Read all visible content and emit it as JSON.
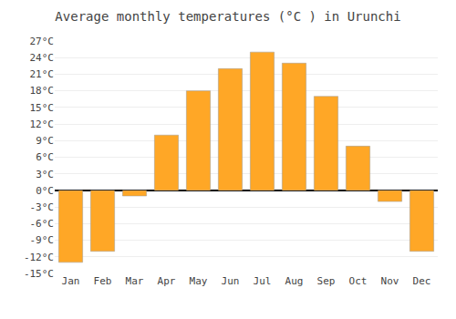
{
  "chart_data": {
    "type": "bar",
    "title": "Average monthly temperatures (°C ) in Urunchi",
    "categories": [
      "Jan",
      "Feb",
      "Mar",
      "Apr",
      "May",
      "Jun",
      "Jul",
      "Aug",
      "Sep",
      "Oct",
      "Nov",
      "Dec"
    ],
    "values": [
      -13,
      -11,
      -1,
      10,
      18,
      22,
      25,
      23,
      17,
      8,
      -2,
      -11
    ],
    "color": "#FFA726",
    "ylim": [
      -15,
      27
    ],
    "yticks": [
      {
        "value": -15,
        "label": "-15°C"
      },
      {
        "value": -12,
        "label": "-12°C"
      },
      {
        "value": -9,
        "label": "-9°C"
      },
      {
        "value": -6,
        "label": "-6°C"
      },
      {
        "value": -3,
        "label": "-3°C"
      },
      {
        "value": 0,
        "label": "0°C"
      },
      {
        "value": 3,
        "label": "3°C"
      },
      {
        "value": 6,
        "label": "6°C"
      },
      {
        "value": 9,
        "label": "9°C"
      },
      {
        "value": 12,
        "label": "12°C"
      },
      {
        "value": 15,
        "label": "15°C"
      },
      {
        "value": 18,
        "label": "18°C"
      },
      {
        "value": 21,
        "label": "21°C"
      },
      {
        "value": 24,
        "label": "24°C"
      },
      {
        "value": 27,
        "label": "27°C"
      }
    ],
    "grid": true
  }
}
